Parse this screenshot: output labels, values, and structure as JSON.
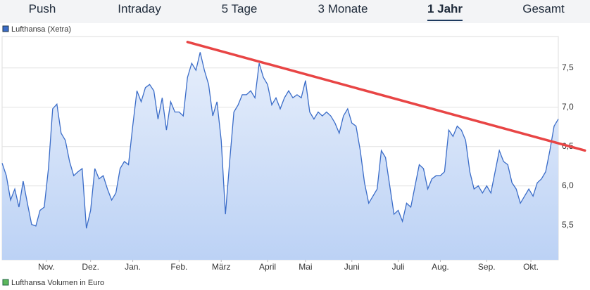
{
  "tabs": [
    "Push",
    "Intraday",
    "5 Tage",
    "3 Monate",
    "1 Jahr",
    "Gesamt"
  ],
  "active_tab": 4,
  "chart_data": {
    "type": "line",
    "series": [
      {
        "name": "Lufthansa (Xetra)",
        "color": "#3a6cc8",
        "values": [
          6.29,
          6.13,
          5.82,
          5.96,
          5.73,
          6.06,
          5.78,
          5.51,
          5.49,
          5.69,
          5.73,
          6.22,
          6.98,
          7.04,
          6.67,
          6.58,
          6.31,
          6.13,
          6.18,
          6.22,
          5.46,
          5.69,
          6.22,
          6.09,
          6.13,
          5.96,
          5.82,
          5.91,
          6.22,
          6.31,
          6.27,
          6.76,
          7.21,
          7.07,
          7.25,
          7.29,
          7.21,
          6.85,
          7.12,
          6.71,
          7.07,
          6.94,
          6.94,
          6.89,
          7.38,
          7.56,
          7.47,
          7.7,
          7.47,
          7.29,
          6.89,
          7.07,
          6.58,
          5.64,
          6.31,
          6.94,
          7.03,
          7.16,
          7.16,
          7.21,
          7.12,
          7.56,
          7.38,
          7.29,
          7.03,
          7.12,
          6.98,
          7.12,
          7.21,
          7.12,
          7.16,
          7.12,
          7.34,
          6.94,
          6.85,
          6.94,
          6.89,
          6.94,
          6.89,
          6.8,
          6.67,
          6.89,
          6.98,
          6.8,
          6.76,
          6.45,
          6.04,
          5.78,
          5.87,
          5.96,
          6.45,
          6.36,
          6.0,
          5.64,
          5.69,
          5.55,
          5.78,
          5.73,
          6.0,
          6.27,
          6.22,
          5.96,
          6.09,
          6.13,
          6.13,
          6.18,
          6.71,
          6.63,
          6.76,
          6.71,
          6.58,
          6.18,
          5.96,
          6.0,
          5.91,
          6.0,
          5.91,
          6.18,
          6.45,
          6.31,
          6.27,
          6.04,
          5.96,
          5.78,
          5.87,
          5.96,
          5.87,
          6.04,
          6.09,
          6.18,
          6.45,
          6.76,
          6.85
        ]
      }
    ],
    "xlim": [
      0,
      132
    ],
    "xticks": [
      {
        "value": 10.5,
        "label": "Nov."
      },
      {
        "value": 21,
        "label": "Dez."
      },
      {
        "value": 31,
        "label": "Jan."
      },
      {
        "value": 42,
        "label": "Feb."
      },
      {
        "value": 52,
        "label": "März"
      },
      {
        "value": 63,
        "label": "April"
      },
      {
        "value": 72,
        "label": "Mai"
      },
      {
        "value": 83,
        "label": "Juni"
      },
      {
        "value": 94,
        "label": "Juli"
      },
      {
        "value": 104,
        "label": "Aug."
      },
      {
        "value": 115,
        "label": "Sep."
      },
      {
        "value": 125.5,
        "label": "Okt."
      }
    ],
    "ylim": [
      5.06,
      7.9
    ],
    "yticks": [
      {
        "value": 5.5,
        "label": "5,5"
      },
      {
        "value": 6.0,
        "label": "6,0"
      },
      {
        "value": 6.5,
        "label": "6,5"
      },
      {
        "value": 7.0,
        "label": "7,0"
      },
      {
        "value": 7.5,
        "label": "7,5"
      }
    ],
    "grid": true,
    "trendline": {
      "color": "#e84545",
      "start": [
        44,
        7.83
      ],
      "end": [
        138.3,
        6.45
      ]
    },
    "volume_legend": {
      "name": "Lufthansa Volumen in Euro",
      "color": "#5cb85c"
    }
  }
}
